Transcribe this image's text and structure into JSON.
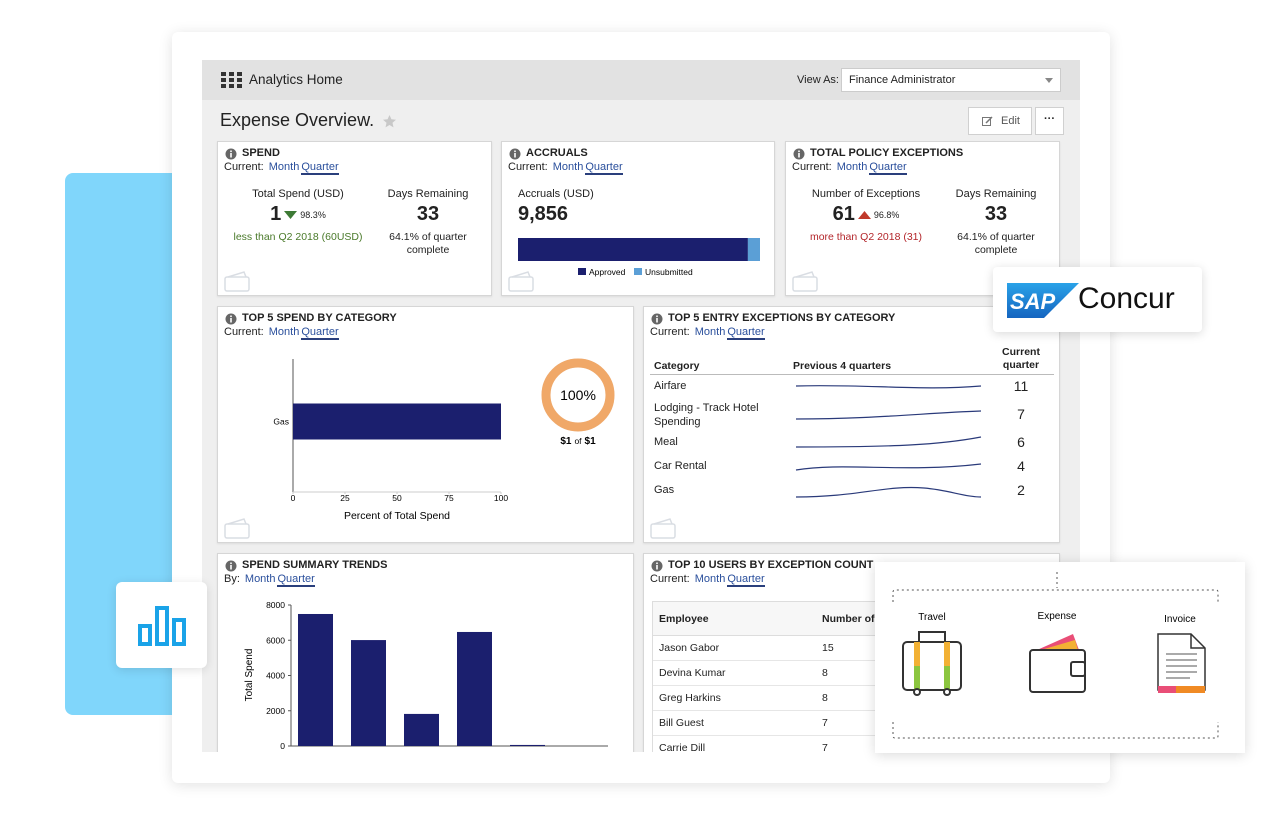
{
  "header": {
    "title": "Analytics Home",
    "view_as_label": "View As:",
    "view_as_value": "Finance Administrator"
  },
  "page": {
    "title": "Expense Overview.",
    "edit": "Edit",
    "more": "···"
  },
  "cards": {
    "spend": {
      "title": "SPEND",
      "period_label": "Current:",
      "periods": [
        "Month",
        "Quarter"
      ],
      "metrics": [
        {
          "label": "Total Spend (USD)",
          "value": "1",
          "change": "98.3%",
          "direction": "down",
          "note": "less than Q2 2018 (60USD)"
        },
        {
          "label": "Days Remaining",
          "value": "33",
          "note": "64.1% of quarter complete"
        }
      ]
    },
    "accruals": {
      "title": "ACCRUALS",
      "period_label": "Current:",
      "periods": [
        "Month",
        "Quarter"
      ],
      "metric_label": "Accruals (USD)",
      "metric_value": "9,856"
    },
    "policy": {
      "title": "TOTAL POLICY EXCEPTIONS",
      "period_label": "Current:",
      "periods": [
        "Month",
        "Quarter"
      ],
      "metrics": [
        {
          "label": "Number of Exceptions",
          "value": "61",
          "change": "96.8%",
          "direction": "up",
          "note": "more than Q2 2018 (31)"
        },
        {
          "label": "Days Remaining",
          "value": "33",
          "note": "64.1% of quarter complete"
        }
      ]
    },
    "top_spend": {
      "title": "TOP 5 SPEND BY CATEGORY",
      "period_label": "Current:",
      "periods": [
        "Month",
        "Quarter"
      ]
    },
    "entry_exceptions": {
      "title": "TOP 5 ENTRY EXCEPTIONS BY CATEGORY",
      "period_label": "Current:",
      "periods": [
        "Month",
        "Quarter"
      ],
      "columns": [
        "Category",
        "Previous 4 quarters",
        "Current quarter"
      ],
      "rows": [
        [
          "Airfare",
          "11"
        ],
        [
          "Lodging - Track Hotel Spending",
          "7"
        ],
        [
          "Meal",
          "6"
        ],
        [
          "Car Rental",
          "4"
        ],
        [
          "Gas",
          "2"
        ]
      ]
    },
    "trends": {
      "title": "SPEND SUMMARY TRENDS",
      "period_label": "By:",
      "periods": [
        "Month",
        "Quarter"
      ]
    },
    "users": {
      "title": "TOP 10 USERS BY EXCEPTION COUNT",
      "period_label": "Current:",
      "periods": [
        "Month",
        "Quarter"
      ],
      "columns": [
        "Employee",
        "Number of Exceptions"
      ],
      "rows": [
        [
          "Jason Gabor",
          "15"
        ],
        [
          "Devina Kumar",
          "8"
        ],
        [
          "Greg Harkins",
          "8"
        ],
        [
          "Bill Guest",
          "7"
        ],
        [
          "Carrie Dill",
          "7"
        ]
      ]
    }
  },
  "chart_data": [
    {
      "type": "stacked_bar",
      "series": [
        {
          "name": "Approved",
          "color": "#1b1f6e",
          "values": [
            95
          ]
        },
        {
          "name": "Unsubmitted",
          "color": "#5b9fd6",
          "values": [
            5
          ]
        }
      ],
      "xlim": [
        0,
        100
      ]
    },
    {
      "type": "hbar",
      "categories": [
        "Gas"
      ],
      "values": [
        100
      ],
      "color": "#1b1f6e",
      "xlim": [
        0,
        100
      ],
      "xticks": [
        0,
        25,
        50,
        75,
        100
      ],
      "xlabel": "Percent of Total Spend"
    },
    {
      "type": "donut",
      "values": [
        100
      ],
      "value_labels": [
        "100%"
      ],
      "color": "#f0a868",
      "caption": [
        "$1",
        "of",
        "$1"
      ]
    },
    {
      "type": "bar",
      "categories": [
        null,
        null,
        null,
        null,
        null
      ],
      "values": [
        7490,
        6010,
        1820,
        6470,
        60
      ],
      "color": "#1b1f6e",
      "ylim": [
        0,
        8000
      ],
      "yticks": [
        0,
        2000,
        4000,
        6000,
        8000
      ],
      "ylabel": "Total Spend"
    }
  ],
  "logo": {
    "mark": "SAP",
    "name": "Concur"
  },
  "modules": [
    "Travel",
    "Expense",
    "Invoice"
  ]
}
